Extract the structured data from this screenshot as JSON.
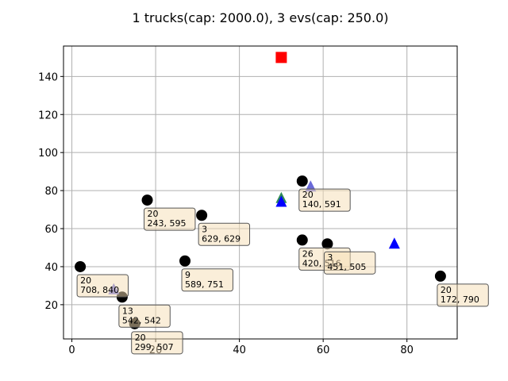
{
  "chart_data": {
    "type": "scatter",
    "title": "1 trucks(cap: 2000.0), 3 evs(cap: 250.0)",
    "xlabel": "",
    "ylabel": "",
    "xlim": [
      -2,
      92
    ],
    "ylim": [
      2,
      156
    ],
    "xticks": [
      0,
      20,
      40,
      60,
      80
    ],
    "yticks": [
      20,
      40,
      60,
      80,
      100,
      120,
      140
    ],
    "grid": true,
    "depot": {
      "x": 50,
      "y": 150,
      "marker": "square",
      "color": "#ff0000"
    },
    "customers": [
      {
        "x": 2,
        "y": 40,
        "label": [
          "20",
          "708, 840"
        ]
      },
      {
        "x": 12,
        "y": 24,
        "label": [
          "13",
          "542, 542"
        ]
      },
      {
        "x": 15,
        "y": 10,
        "label": [
          "20",
          "299, 507"
        ]
      },
      {
        "x": 18,
        "y": 75,
        "label": [
          "20",
          "243, 595"
        ]
      },
      {
        "x": 27,
        "y": 43,
        "label": [
          "9",
          "589, 751"
        ]
      },
      {
        "x": 31,
        "y": 67,
        "label": [
          "3",
          "629, 629"
        ]
      },
      {
        "x": 55,
        "y": 85,
        "label": [
          "20",
          "140, 591"
        ]
      },
      {
        "x": 55,
        "y": 54,
        "label": [
          "26",
          "420, 516"
        ]
      },
      {
        "x": 61,
        "y": 52,
        "label": [
          "3",
          "451, 505"
        ]
      },
      {
        "x": 88,
        "y": 35,
        "label": [
          "20",
          "172, 790"
        ]
      }
    ],
    "stations": [
      {
        "x": 10,
        "y": 28,
        "color": "#6a6ad8"
      },
      {
        "x": 57,
        "y": 82,
        "color": "#6a6ad8"
      },
      {
        "x": 50,
        "y": 76,
        "color": "#2e8b57"
      },
      {
        "x": 50,
        "y": 74,
        "color": "#0000ff"
      },
      {
        "x": 77,
        "y": 52,
        "color": "#0000ff"
      }
    ],
    "colors": {
      "customer": "#000000",
      "annotation_fill": "#f5deb3",
      "annotation_edge": "#555555",
      "grid": "#b0b0b0"
    }
  }
}
